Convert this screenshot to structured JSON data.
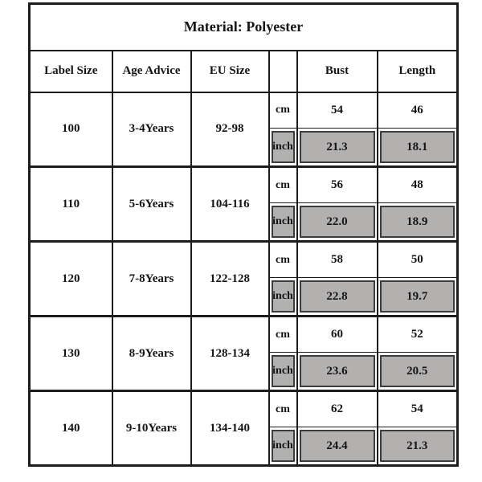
{
  "chart_data": {
    "type": "table",
    "title": "Material: Polyester",
    "columns": [
      "Label Size",
      "Age Advice",
      "EU Size",
      "",
      "Bust",
      "Length"
    ],
    "unit_row_labels": {
      "cm": "cm",
      "inch": "inch"
    },
    "rows": [
      {
        "label_size": "100",
        "age_advice": "3-4Years",
        "eu_size": "92-98",
        "bust_cm": "54",
        "length_cm": "46",
        "bust_inch": "21.3",
        "length_inch": "18.1"
      },
      {
        "label_size": "110",
        "age_advice": "5-6Years",
        "eu_size": "104-116",
        "bust_cm": "56",
        "length_cm": "48",
        "bust_inch": "22.0",
        "length_inch": "18.9"
      },
      {
        "label_size": "120",
        "age_advice": "7-8Years",
        "eu_size": "122-128",
        "bust_cm": "58",
        "length_cm": "50",
        "bust_inch": "22.8",
        "length_inch": "19.7"
      },
      {
        "label_size": "130",
        "age_advice": "8-9Years",
        "eu_size": "128-134",
        "bust_cm": "60",
        "length_cm": "52",
        "bust_inch": "23.6",
        "length_inch": "20.5"
      },
      {
        "label_size": "140",
        "age_advice": "9-10Years",
        "eu_size": "134-140",
        "bust_cm": "62",
        "length_cm": "54",
        "bust_inch": "24.4",
        "length_inch": "21.3"
      }
    ]
  },
  "colors": {
    "shaded_cell": "#b3b0b0",
    "shaded_border": "#3c3c3c",
    "table_border": "#1c1c1c",
    "background": "#ffffff"
  }
}
